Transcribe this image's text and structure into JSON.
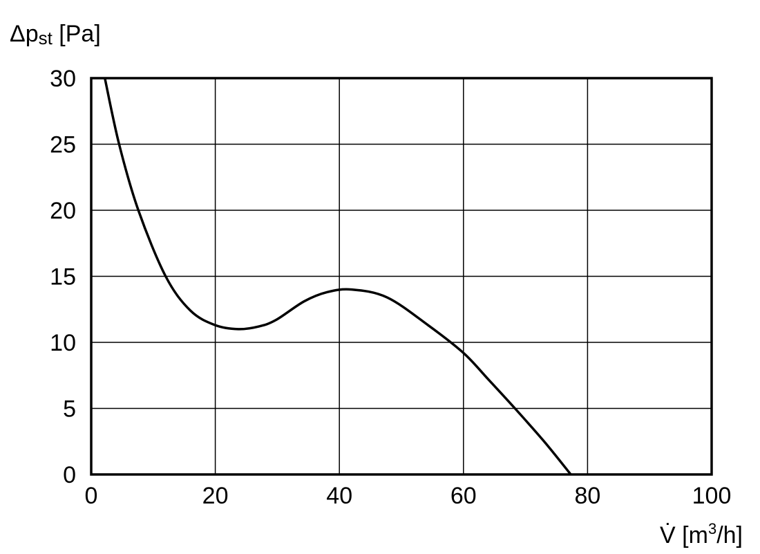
{
  "chart_data": {
    "type": "line",
    "title": "",
    "ylabel_main": "Δp",
    "ylabel_sub": "st",
    "ylabel_unit": " [Pa]",
    "xlabel_main": "V̇",
    "xlabel_unit_pre": " [m",
    "xlabel_unit_sup": "3",
    "xlabel_unit_post": "/h]",
    "xlim": [
      0,
      100
    ],
    "ylim": [
      0,
      30
    ],
    "xticks": [
      0,
      20,
      40,
      60,
      80,
      100
    ],
    "yticks": [
      0,
      5,
      10,
      15,
      20,
      25,
      30
    ],
    "grid": true,
    "line_color": "#000000",
    "series": [
      {
        "x": [
          2.2,
          4.5,
          7.6,
          12,
          16,
          20,
          23.7,
          27,
          29.8,
          34.3,
          38,
          42,
          47.7,
          54.3,
          60,
          64,
          68.3,
          73,
          77.3
        ],
        "y": [
          30,
          25,
          20,
          15,
          12.4,
          11.3,
          11.0,
          11.2,
          11.7,
          13.1,
          13.8,
          14.0,
          13.4,
          11.3,
          9.2,
          7.2,
          5.0,
          2.5,
          0
        ]
      }
    ]
  }
}
